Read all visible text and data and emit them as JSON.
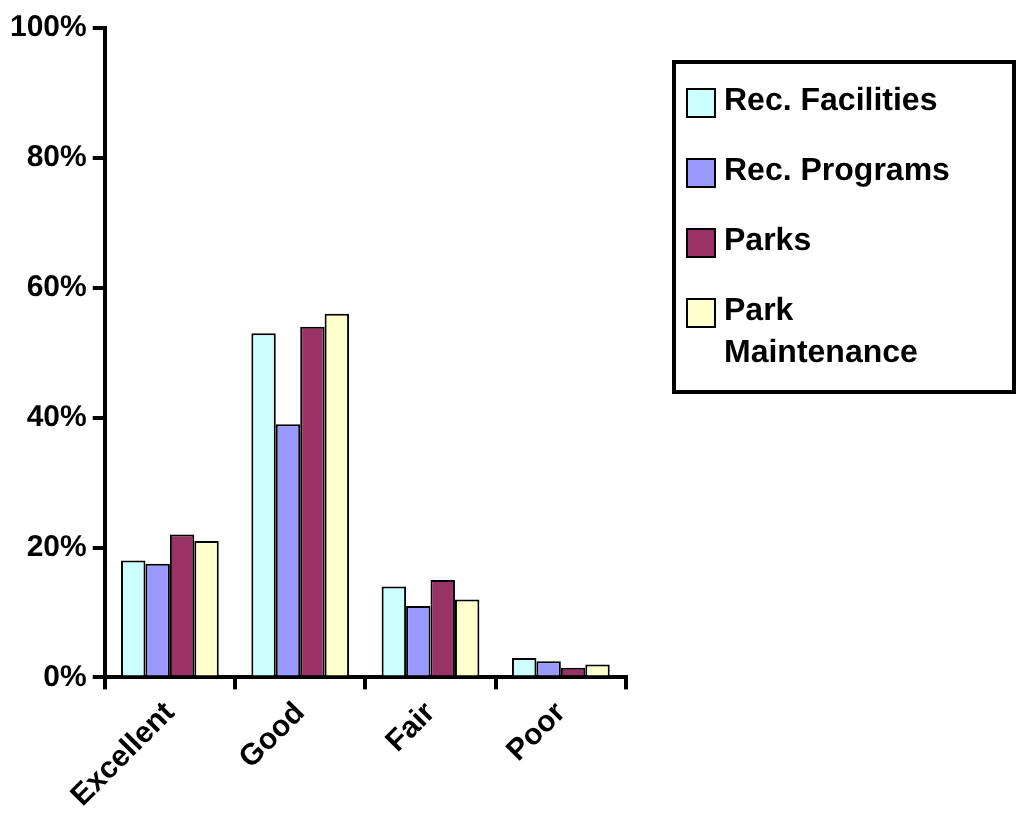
{
  "chart_data": {
    "type": "bar",
    "categories": [
      "Excellent",
      "Good",
      "Fair",
      "Poor"
    ],
    "series": [
      {
        "name": "Rec. Facilities",
        "color": "#ccffff",
        "values": [
          18,
          53,
          14,
          3
        ]
      },
      {
        "name": "Rec. Programs",
        "color": "#9999ff",
        "values": [
          17.5,
          39,
          11,
          2.5
        ]
      },
      {
        "name": "Parks",
        "color": "#993366",
        "values": [
          22,
          54,
          15,
          1.5
        ]
      },
      {
        "name": "Park Maintenance",
        "color": "#ffffcc",
        "values": [
          21,
          56,
          12,
          2
        ]
      }
    ],
    "ylim": [
      0,
      100
    ],
    "yticks": [
      {
        "value": 0,
        "label": "0%"
      },
      {
        "value": 20,
        "label": "20%"
      },
      {
        "value": 40,
        "label": "40%"
      },
      {
        "value": 60,
        "label": "60%"
      },
      {
        "value": 80,
        "label": "80%"
      },
      {
        "value": 100,
        "label": "100%"
      }
    ],
    "grid": false,
    "legend": "right"
  }
}
